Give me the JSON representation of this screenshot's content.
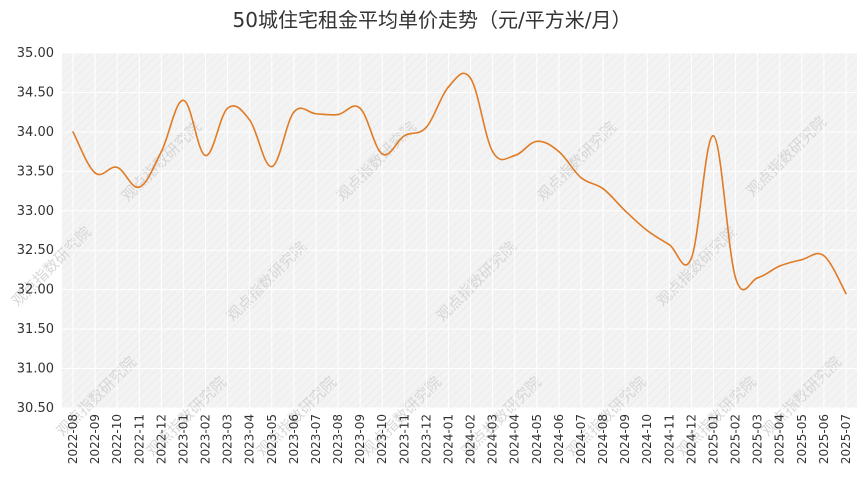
{
  "chart_data": {
    "type": "line",
    "title": "50城住宅租金平均单价走势（元/平方米/月）",
    "xlabel": "",
    "ylabel": "",
    "x": [
      "2022-08",
      "2022-09",
      "2022-10",
      "2022-11",
      "2022-12",
      "2023-01",
      "2023-02",
      "2023-03",
      "2023-04",
      "2023-05",
      "2023-06",
      "2023-07",
      "2023-08",
      "2023-09",
      "2023-10",
      "2023-11",
      "2023-12",
      "2024-01",
      "2024-02",
      "2024-03",
      "2024-04",
      "2024-05",
      "2024-06",
      "2024-07",
      "2024-08",
      "2024-09",
      "2024-10",
      "2024-11",
      "2024-12",
      "2025-01",
      "2025-02",
      "2025-03",
      "2025-04",
      "2025-05",
      "2025-06",
      "2025-07"
    ],
    "series": [
      {
        "name": "",
        "color": "#E07B26",
        "values": [
          34.0,
          33.48,
          33.55,
          33.3,
          33.75,
          34.4,
          33.7,
          34.3,
          34.15,
          33.56,
          34.25,
          34.23,
          34.22,
          34.3,
          33.72,
          33.95,
          34.06,
          34.57,
          34.68,
          33.75,
          33.7,
          33.88,
          33.75,
          33.42,
          33.28,
          33.0,
          32.75,
          32.57,
          32.4,
          33.95,
          32.15,
          32.15,
          32.3,
          32.38,
          32.43,
          31.95
        ]
      }
    ],
    "ylim": [
      30.5,
      35.0
    ],
    "yticks": [
      "30.50",
      "31.00",
      "31.50",
      "32.00",
      "32.50",
      "33.00",
      "33.50",
      "34.00",
      "34.50",
      "35.00"
    ],
    "grid": true,
    "legend": "none",
    "watermark": "观点指数研究院"
  }
}
